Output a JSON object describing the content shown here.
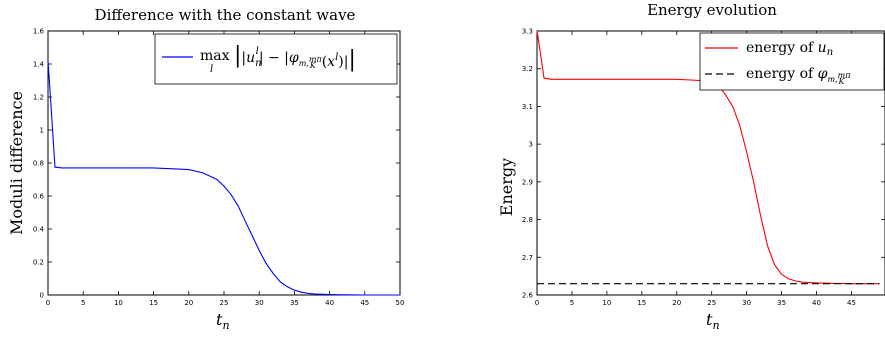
{
  "chart_data": [
    {
      "type": "line",
      "title": "Difference with the constant wave",
      "xlabel": "t",
      "xlabel_sub": "n",
      "ylabel": "Moduli difference",
      "xlim": [
        0,
        50
      ],
      "ylim": [
        0,
        1.6
      ],
      "xticks": [
        "0",
        "5",
        "10",
        "15",
        "20",
        "25",
        "30",
        "35",
        "40",
        "45",
        "50"
      ],
      "yticks": [
        "0",
        "0.2",
        "0.4",
        "0.6",
        "0.8",
        "1",
        "1.2",
        "1.4",
        "1.6"
      ],
      "grid": false,
      "legend_position": "top-right",
      "series": [
        {
          "name": "max_l | |u_n^l| − |φ_{m,mπ/K}(x^l)| |",
          "color": "#0000ff",
          "x": [
            0,
            0.5,
            1,
            2,
            5,
            10,
            15,
            20,
            22,
            24,
            25,
            26,
            27,
            28,
            29,
            30,
            31,
            32,
            33,
            34,
            35,
            36,
            37,
            38,
            40,
            42,
            45,
            50
          ],
          "y": [
            1.42,
            1.1,
            0.775,
            0.77,
            0.77,
            0.77,
            0.77,
            0.76,
            0.74,
            0.7,
            0.66,
            0.61,
            0.54,
            0.45,
            0.36,
            0.27,
            0.19,
            0.13,
            0.08,
            0.05,
            0.03,
            0.017,
            0.01,
            0.006,
            0.003,
            0.001,
            0.0,
            0.0
          ]
        }
      ]
    },
    {
      "type": "line",
      "title": "Energy evolution",
      "xlabel": "t",
      "xlabel_sub": "n",
      "ylabel": "Energy",
      "xlim": [
        0,
        50
      ],
      "ylim": [
        2.6,
        3.3
      ],
      "xticks": [
        "0",
        "5",
        "10",
        "15",
        "20",
        "25",
        "30",
        "35",
        "40",
        "45"
      ],
      "yticks": [
        "2.6",
        "2.7",
        "2.8",
        "2.9",
        "3",
        "3.1",
        "3.2",
        "3.3"
      ],
      "grid": false,
      "legend_position": "top-right",
      "series": [
        {
          "name": "energy of u_n",
          "color": "#ff0000",
          "dash": "solid",
          "x": [
            0,
            0.5,
            1,
            2,
            5,
            10,
            15,
            20,
            22,
            24,
            25,
            26,
            27,
            28,
            29,
            30,
            31,
            32,
            33,
            34,
            35,
            36,
            37,
            38,
            40,
            42,
            45,
            49
          ],
          "y": [
            3.3,
            3.24,
            3.175,
            3.172,
            3.172,
            3.172,
            3.172,
            3.172,
            3.17,
            3.168,
            3.165,
            3.155,
            3.13,
            3.1,
            3.05,
            2.98,
            2.9,
            2.81,
            2.73,
            2.68,
            2.655,
            2.643,
            2.637,
            2.634,
            2.632,
            2.631,
            2.63,
            2.63
          ]
        },
        {
          "name": "energy of φ_{m,mπ/K}",
          "color": "#000000",
          "dash": "dashed",
          "x": [
            0,
            49
          ],
          "y": [
            2.63,
            2.63
          ]
        }
      ]
    }
  ]
}
